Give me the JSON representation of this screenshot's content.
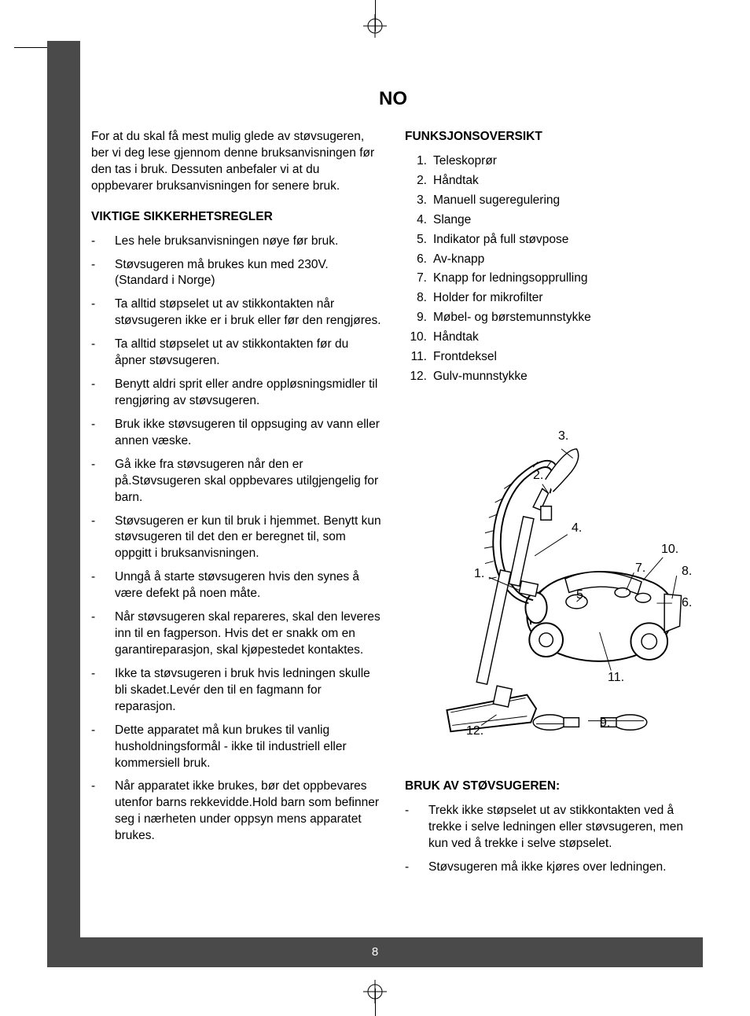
{
  "header": "NO",
  "intro": "For at du skal få mest mulig glede av støvsugeren, ber vi deg lese gjennom denne bruksanvisningen før den tas i bruk. Dessuten anbefaler vi at du oppbevarer bruksanvisningen for senere bruk.",
  "safety_heading": "VIKTIGE SIKKERHETSREGLER",
  "safety_items": [
    "Les hele bruksanvisningen nøye før bruk.",
    "Støvsugeren må brukes kun med 230V. (Standard i Norge)",
    "Ta alltid støpselet ut av stikkontakten når støvsugeren ikke er i bruk eller før den rengjøres.",
    "Ta alltid støpselet ut av stikkontakten før du åpner støvsugeren.",
    "Benytt aldri sprit eller andre oppløsningsmidler til rengjøring av støvsugeren.",
    "Bruk ikke støvsugeren til oppsuging av vann eller annen væske.",
    "Gå ikke fra støvsugeren når den er på.Støvsugeren skal oppbevares utilgjengelig for barn.",
    "Støvsugeren er kun til bruk i hjemmet. Benytt kun støvsugeren til det den er beregnet til, som oppgitt i bruksanvisningen.",
    "Unngå å starte støvsugeren hvis den synes å være defekt på noen måte.",
    "Når støvsugeren skal repareres, skal den leveres inn til en fagperson. Hvis det er snakk om en garantireparasjon, skal kjøpestedet kontaktes.",
    "Ikke ta støvsugeren i bruk hvis ledningen skulle bli skadet.Levér den til en fagmann for reparasjon.",
    "Dette apparatet må kun brukes til vanlig husholdningsformål - ikke til industriell eller kommersiell bruk.",
    "Når apparatet ikke brukes, bør det oppbevares utenfor barns rekkevidde.Hold barn som befinner seg i nærheten under oppsyn mens apparatet brukes."
  ],
  "functions_heading": "FUNKSJONSOVERSIKT",
  "functions": [
    "Teleskoprør",
    "Håndtak",
    "Manuell sugeregulering",
    "Slange",
    "Indikator på full støvpose",
    "Av-knapp",
    "Knapp for ledningsopprulling",
    "Holder for mikrofilter",
    "Møbel- og børstemunnstykke",
    "Håndtak",
    "Frontdeksel",
    "Gulv-munnstykke"
  ],
  "diagram_labels": {
    "1": "1.",
    "2": "2.",
    "3": "3.",
    "4": "4.",
    "5": "5.",
    "6": "6.",
    "7": "7.",
    "8": "8.",
    "9": "9.",
    "10": "10.",
    "11": "11.",
    "12": "12."
  },
  "usage_heading": "BRUK AV STØVSUGEREN:",
  "usage_items": [
    "Trekk ikke støpselet ut av stikkontakten ved å trekke i selve ledningen eller støvsugeren, men kun ved å trekke i selve støpselet.",
    "Støvsugeren må ikke kjøres over ledningen."
  ],
  "page_number": "8",
  "colors": {
    "bar_bg": "#4a4a4a",
    "bar_fg": "#ffffff",
    "page_bg": "#ffffff",
    "text": "#000000"
  }
}
